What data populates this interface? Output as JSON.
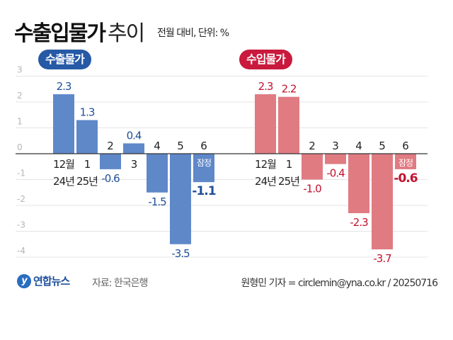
{
  "header": {
    "title_bold": "수출입물가",
    "title_light": "추이",
    "subtitle": "전월 대비, 단위: %"
  },
  "colors": {
    "export_bar": "#5f88c9",
    "export_text": "#1f4f98",
    "export_pill": "#2659a6",
    "import_bar": "#e07b82",
    "import_text": "#c3112f",
    "import_pill": "#c9193c"
  },
  "chart_data": [
    {
      "type": "bar",
      "title": "수출물가",
      "categories": [
        "12월",
        "1",
        "2",
        "3",
        "4",
        "5",
        "6"
      ],
      "year_labels": [
        "24년",
        "25년",
        "",
        "",
        "",
        "",
        ""
      ],
      "values": [
        2.3,
        1.3,
        -0.6,
        0.4,
        -1.5,
        -3.5,
        -1.1
      ],
      "value_labels": [
        "2.3",
        "1.3",
        "-0.6",
        "0.4",
        "-1.5",
        "-3.5",
        "-1.1"
      ],
      "annotation": "잠정",
      "ylim": [
        -4,
        3
      ],
      "yticks": [
        "3",
        "2",
        "1",
        "0",
        "-1",
        "-2",
        "-3",
        "-4"
      ],
      "grid": true
    },
    {
      "type": "bar",
      "title": "수입물가",
      "categories": [
        "12월",
        "1",
        "2",
        "3",
        "4",
        "5",
        "6"
      ],
      "year_labels": [
        "24년",
        "25년",
        "",
        "",
        "",
        "",
        ""
      ],
      "values": [
        2.3,
        2.2,
        -1.0,
        -0.4,
        -2.3,
        -3.7,
        -0.6
      ],
      "value_labels": [
        "2.3",
        "2.2",
        "-1.0",
        "-0.4",
        "-2.3",
        "-3.7",
        "-0.6"
      ],
      "annotation": "잠정",
      "ylim": [
        -4,
        3
      ],
      "grid": true
    }
  ],
  "footer": {
    "logo": "연합뉴스",
    "source": "자료: 한국은행",
    "credit": "원형민 기자 = circlemin@yna.co.kr / 20250716"
  }
}
